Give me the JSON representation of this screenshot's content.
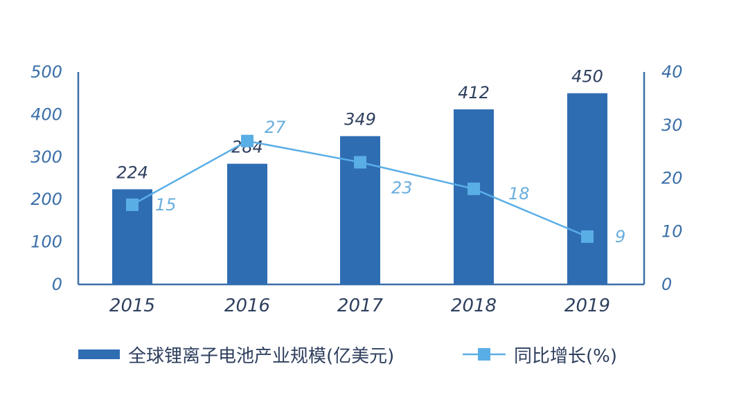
{
  "chart_data": {
    "type": "bar",
    "categories": [
      "2015",
      "2016",
      "2017",
      "2018",
      "2019"
    ],
    "series": [
      {
        "name": "全球锂离子电池产业规模(亿美元)",
        "type": "bar",
        "axis": "left",
        "values": [
          224,
          284,
          349,
          412,
          450
        ],
        "labels": [
          "224",
          "284",
          "349",
          "412",
          "450"
        ],
        "color": "#2f6db3"
      },
      {
        "name": "同比增长(%)",
        "type": "line",
        "axis": "right",
        "values": [
          15,
          27,
          23,
          18,
          9
        ],
        "labels": [
          "15",
          "27",
          "23",
          "18",
          "9"
        ],
        "color": "#5aaee6"
      }
    ],
    "y_left": {
      "lim": [
        0,
        500
      ],
      "ticks": [
        "0",
        "100",
        "200",
        "300",
        "400",
        "500"
      ]
    },
    "y_right": {
      "lim": [
        0,
        40
      ],
      "ticks": [
        "0",
        "10",
        "20",
        "30",
        "40"
      ]
    },
    "grid": false,
    "legend_position": "bottom"
  }
}
